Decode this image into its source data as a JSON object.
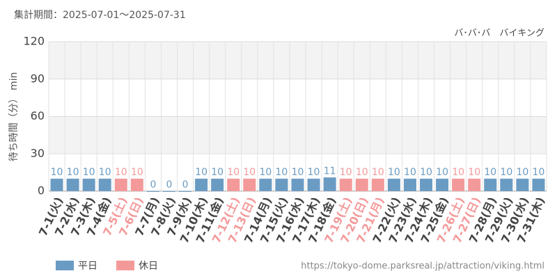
{
  "chart_data": {
    "type": "bar",
    "title": "集計期間：2025-07-01～2025-07-31",
    "subtitle": "バ･バ･バ　バイキング",
    "y_label": "待ち時間（分） min",
    "source": "https://tokyo-dome.parksreal.jp/attraction/viking.html",
    "categories": [
      "7-1(火)",
      "7-2(水)",
      "7-3(木)",
      "7-4(金)",
      "7-5(土)",
      "7-6(日)",
      "7-7(月)",
      "7-8(火)",
      "7-9(水)",
      "7-10(木)",
      "7-11(金)",
      "7-12(土)",
      "7-13(日)",
      "7-14(月)",
      "7-15(火)",
      "7-16(水)",
      "7-17(木)",
      "7-18(金)",
      "7-19(土)",
      "7-20(日)",
      "7-21(月)",
      "7-22(火)",
      "7-23(水)",
      "7-24(木)",
      "7-25(金)",
      "7-26(土)",
      "7-27(日)",
      "7-28(月)",
      "7-29(火)",
      "7-30(水)",
      "7-31(木)"
    ],
    "series": [
      {
        "name": "平日",
        "color": "#6a9bc3",
        "values": [
          10,
          10,
          10,
          10,
          null,
          null,
          0,
          0,
          0,
          10,
          10,
          null,
          null,
          10,
          10,
          10,
          10,
          11,
          null,
          null,
          null,
          10,
          10,
          10,
          10,
          null,
          null,
          10,
          10,
          10,
          10
        ]
      },
      {
        "name": "休日",
        "color": "#f4999a",
        "values": [
          null,
          null,
          null,
          null,
          10,
          10,
          null,
          null,
          null,
          null,
          null,
          10,
          10,
          null,
          null,
          null,
          null,
          null,
          10,
          10,
          10,
          null,
          null,
          null,
          null,
          10,
          10,
          null,
          null,
          null,
          null
        ]
      }
    ],
    "ylim": [
      0,
      120
    ],
    "yticks": [
      0,
      30,
      60,
      90,
      120
    ],
    "grid": true
  }
}
